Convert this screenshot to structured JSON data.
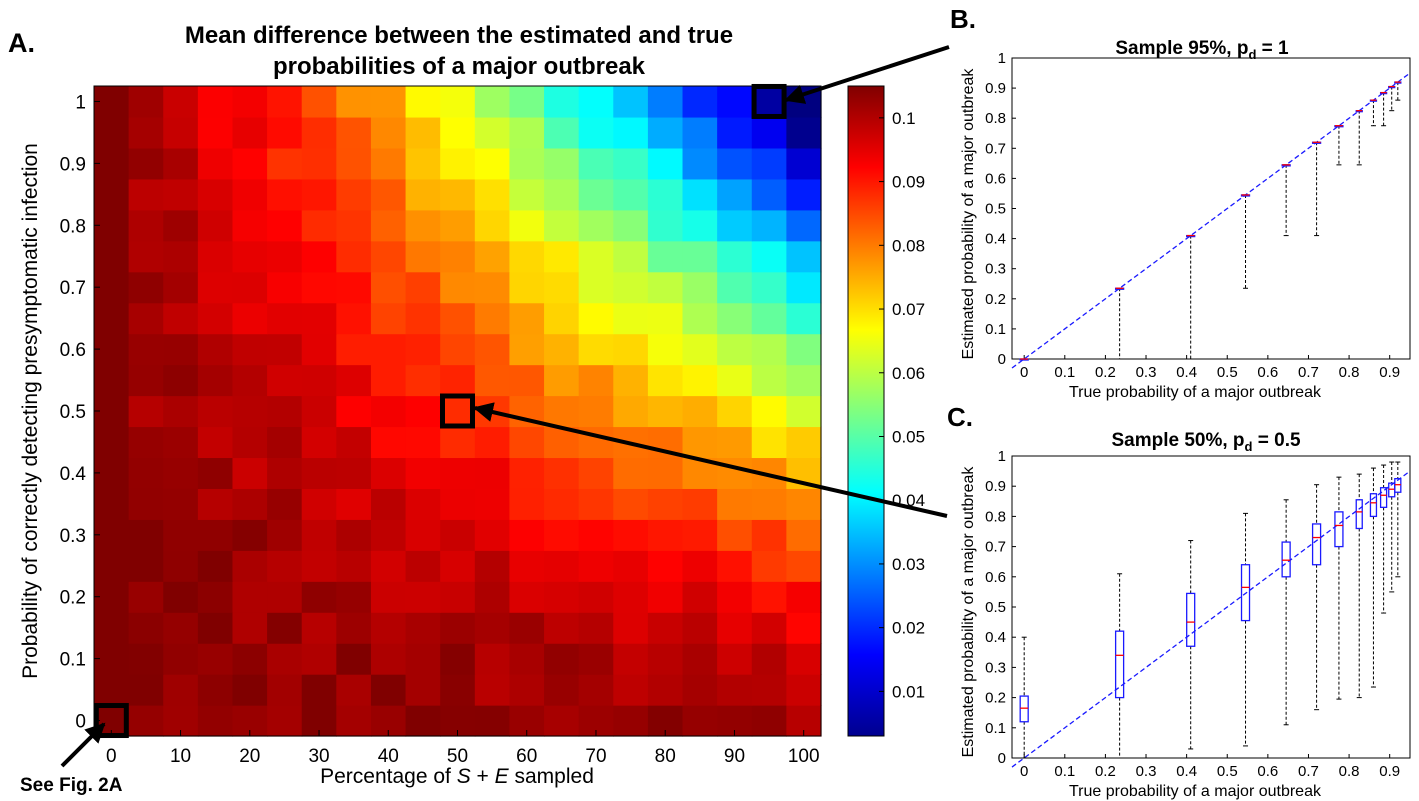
{
  "chart_data": [
    {
      "type": "heatmap",
      "panel_label": "A.",
      "title_line1": "Mean difference between the estimated and true",
      "title_line2": "probabilities of a major outbreak",
      "xlabel_prefix": "Percentage of ",
      "xlabel_S": "S",
      "xlabel_mid": " + ",
      "xlabel_E": "E",
      "xlabel_suffix": " sampled",
      "ylabel": "Probability of correctly detecting presymptomatic infection",
      "x_ticks": [
        "0",
        "10",
        "20",
        "30",
        "40",
        "50",
        "60",
        "70",
        "80",
        "90",
        "100"
      ],
      "y_ticks": [
        "0",
        "0.1",
        "0.2",
        "0.3",
        "0.4",
        "0.5",
        "0.6",
        "0.7",
        "0.8",
        "0.9",
        "1"
      ],
      "xlim": [
        0,
        100
      ],
      "ylim": [
        0,
        1
      ],
      "colorbar_ticks": [
        "0.01",
        "0.02",
        "0.03",
        "0.04",
        "0.05",
        "0.06",
        "0.07",
        "0.08",
        "0.09",
        "0.1"
      ],
      "colorbar_range": [
        0.003,
        0.105
      ],
      "grid_rows": 21,
      "grid_cols": 21,
      "annotation_text": "See Fig. 2A",
      "highlight_boxes": [
        {
          "x": 0,
          "y": 0
        },
        {
          "x": 50,
          "y": 0.5
        },
        {
          "x": 95,
          "y": 1
        }
      ]
    },
    {
      "type": "box",
      "panel_label": "B.",
      "title_main": "Sample 95%, p",
      "title_sub": "d",
      "title_tail": " = 1",
      "xlabel": "True probability of a major outbreak",
      "ylabel": "Estimated probability of a major outbreak",
      "x_ticks": [
        "0",
        "0.1",
        "0.2",
        "0.3",
        "0.4",
        "0.5",
        "0.6",
        "0.7",
        "0.8",
        "0.9"
      ],
      "y_ticks": [
        "0",
        "0.1",
        "0.2",
        "0.3",
        "0.4",
        "0.5",
        "0.6",
        "0.7",
        "0.8",
        "0.9",
        "1"
      ],
      "xlim": [
        -0.03,
        0.95
      ],
      "ylim": [
        0,
        1
      ],
      "boxes": [
        {
          "x": 0.0,
          "q1": 0.0,
          "med": 0.0,
          "q3": 0.0,
          "lo": 0.0,
          "hi": 0.0
        },
        {
          "x": 0.235,
          "q1": 0.235,
          "med": 0.235,
          "q3": 0.235,
          "lo": 0.0,
          "hi": 0.235
        },
        {
          "x": 0.41,
          "q1": 0.41,
          "med": 0.41,
          "q3": 0.41,
          "lo": 0.0,
          "hi": 0.41
        },
        {
          "x": 0.545,
          "q1": 0.545,
          "med": 0.545,
          "q3": 0.545,
          "lo": 0.235,
          "hi": 0.545
        },
        {
          "x": 0.645,
          "q1": 0.645,
          "med": 0.645,
          "q3": 0.645,
          "lo": 0.41,
          "hi": 0.645
        },
        {
          "x": 0.72,
          "q1": 0.72,
          "med": 0.72,
          "q3": 0.72,
          "lo": 0.41,
          "hi": 0.72
        },
        {
          "x": 0.775,
          "q1": 0.775,
          "med": 0.775,
          "q3": 0.775,
          "lo": 0.645,
          "hi": 0.775
        },
        {
          "x": 0.825,
          "q1": 0.825,
          "med": 0.825,
          "q3": 0.825,
          "lo": 0.645,
          "hi": 0.825
        },
        {
          "x": 0.86,
          "q1": 0.86,
          "med": 0.86,
          "q3": 0.86,
          "lo": 0.775,
          "hi": 0.86
        },
        {
          "x": 0.885,
          "q1": 0.885,
          "med": 0.885,
          "q3": 0.885,
          "lo": 0.775,
          "hi": 0.885
        },
        {
          "x": 0.905,
          "q1": 0.905,
          "med": 0.905,
          "q3": 0.905,
          "lo": 0.825,
          "hi": 0.905
        },
        {
          "x": 0.92,
          "q1": 0.92,
          "med": 0.92,
          "q3": 0.92,
          "lo": 0.86,
          "hi": 0.92
        }
      ]
    },
    {
      "type": "box",
      "panel_label": "C.",
      "title_main": "Sample 50%, p",
      "title_sub": "d",
      "title_tail": " = 0.5",
      "xlabel": "True probability of a major outbreak",
      "ylabel": "Estimated probability of a major outbreak",
      "x_ticks": [
        "0",
        "0.1",
        "0.2",
        "0.3",
        "0.4",
        "0.5",
        "0.6",
        "0.7",
        "0.8",
        "0.9"
      ],
      "y_ticks": [
        "0",
        "0.1",
        "0.2",
        "0.3",
        "0.4",
        "0.5",
        "0.6",
        "0.7",
        "0.8",
        "0.9",
        "1"
      ],
      "xlim": [
        -0.03,
        0.95
      ],
      "ylim": [
        0,
        1
      ],
      "boxes": [
        {
          "x": 0.0,
          "q1": 0.12,
          "med": 0.165,
          "q3": 0.205,
          "lo": 0.0,
          "hi": 0.4
        },
        {
          "x": 0.235,
          "q1": 0.2,
          "med": 0.34,
          "q3": 0.42,
          "lo": 0.0,
          "hi": 0.61
        },
        {
          "x": 0.41,
          "q1": 0.37,
          "med": 0.45,
          "q3": 0.545,
          "lo": 0.03,
          "hi": 0.72
        },
        {
          "x": 0.545,
          "q1": 0.455,
          "med": 0.565,
          "q3": 0.64,
          "lo": 0.04,
          "hi": 0.81
        },
        {
          "x": 0.645,
          "q1": 0.6,
          "med": 0.655,
          "q3": 0.715,
          "lo": 0.11,
          "hi": 0.855
        },
        {
          "x": 0.72,
          "q1": 0.64,
          "med": 0.73,
          "q3": 0.775,
          "lo": 0.16,
          "hi": 0.905
        },
        {
          "x": 0.775,
          "q1": 0.7,
          "med": 0.77,
          "q3": 0.815,
          "lo": 0.195,
          "hi": 0.93
        },
        {
          "x": 0.825,
          "q1": 0.76,
          "med": 0.815,
          "q3": 0.855,
          "lo": 0.2,
          "hi": 0.94
        },
        {
          "x": 0.86,
          "q1": 0.8,
          "med": 0.845,
          "q3": 0.875,
          "lo": 0.235,
          "hi": 0.96
        },
        {
          "x": 0.885,
          "q1": 0.83,
          "med": 0.87,
          "q3": 0.895,
          "lo": 0.48,
          "hi": 0.97
        },
        {
          "x": 0.905,
          "q1": 0.865,
          "med": 0.89,
          "q3": 0.91,
          "lo": 0.55,
          "hi": 0.98
        },
        {
          "x": 0.92,
          "q1": 0.88,
          "med": 0.905,
          "q3": 0.925,
          "lo": 0.6,
          "hi": 0.98
        }
      ]
    }
  ]
}
